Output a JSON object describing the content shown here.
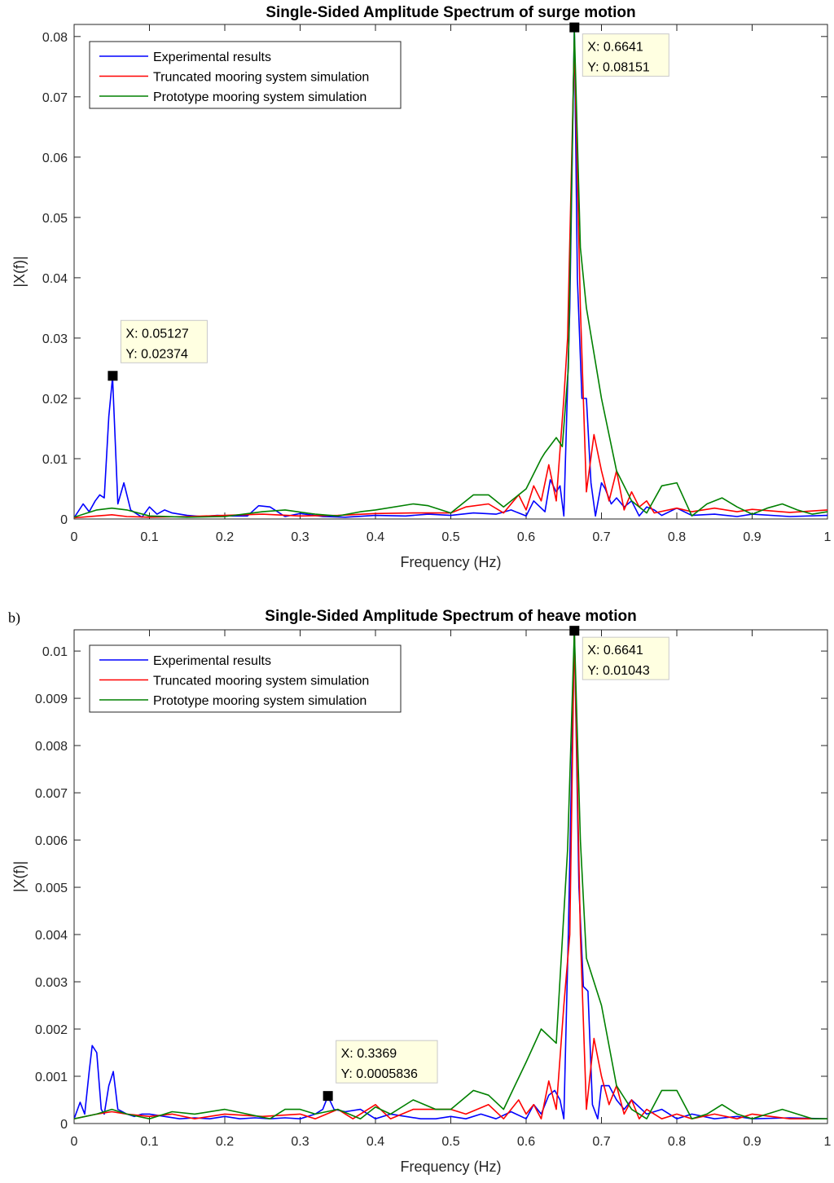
{
  "panel_labels": [
    "",
    "b)"
  ],
  "chart_data": [
    {
      "type": "line",
      "title": "Single-Sided Amplitude Spectrum of surge motion",
      "xlabel": "Frequency (Hz)",
      "ylabel": "|X(f)|",
      "xlim": [
        0,
        1
      ],
      "ylim": [
        0,
        0.082
      ],
      "xticks": [
        0,
        0.1,
        0.2,
        0.3,
        0.4,
        0.5,
        0.6,
        0.7,
        0.8,
        0.9,
        1
      ],
      "xtick_labels": [
        "0",
        "0.1",
        "0.2",
        "0.3",
        "0.4",
        "0.5",
        "0.6",
        "0.7",
        "0.8",
        "0.9",
        "1"
      ],
      "yticks": [
        0,
        0.01,
        0.02,
        0.03,
        0.04,
        0.05,
        0.06,
        0.07,
        0.08
      ],
      "ytick_labels": [
        "0",
        "0.01",
        "0.02",
        "0.03",
        "0.04",
        "0.05",
        "0.06",
        "0.07",
        "0.08"
      ],
      "grid": false,
      "legend_position": "top-left",
      "series": [
        {
          "name": "Experimental results",
          "color": "#0000ff",
          "x": [
            0,
            0.012,
            0.02,
            0.028,
            0.034,
            0.04,
            0.046,
            0.051,
            0.058,
            0.066,
            0.075,
            0.09,
            0.1,
            0.11,
            0.12,
            0.13,
            0.15,
            0.17,
            0.19,
            0.21,
            0.23,
            0.245,
            0.26,
            0.28,
            0.3,
            0.33,
            0.36,
            0.4,
            0.44,
            0.47,
            0.5,
            0.53,
            0.56,
            0.58,
            0.6,
            0.61,
            0.625,
            0.632,
            0.64,
            0.645,
            0.65,
            0.658,
            0.664,
            0.668,
            0.674,
            0.68,
            0.686,
            0.692,
            0.7,
            0.705,
            0.713,
            0.72,
            0.73,
            0.74,
            0.75,
            0.76,
            0.77,
            0.78,
            0.8,
            0.82,
            0.85,
            0.88,
            0.9,
            0.95,
            1
          ],
          "y": [
            0.0002,
            0.0025,
            0.0012,
            0.003,
            0.004,
            0.0035,
            0.017,
            0.0235,
            0.0025,
            0.006,
            0.0015,
            0.0003,
            0.002,
            0.0008,
            0.0015,
            0.001,
            0.0006,
            0.0004,
            0.0006,
            0.0005,
            0.0005,
            0.0022,
            0.002,
            0.0004,
            0.0009,
            0.0004,
            0.0003,
            0.0006,
            0.0005,
            0.0008,
            0.0006,
            0.001,
            0.0008,
            0.0015,
            0.0005,
            0.003,
            0.0012,
            0.0065,
            0.0045,
            0.0055,
            0.0005,
            0.035,
            0.08151,
            0.04,
            0.02,
            0.02,
            0.006,
            0.0005,
            0.006,
            0.005,
            0.0025,
            0.0035,
            0.002,
            0.003,
            0.0005,
            0.002,
            0.0015,
            0.0006,
            0.0018,
            0.0006,
            0.0008,
            0.0004,
            0.0008,
            0.0004,
            0.0006
          ]
        },
        {
          "name": "Truncated mooring system simulation",
          "color": "#ff0000",
          "x": [
            0,
            0.03,
            0.05,
            0.07,
            0.1,
            0.15,
            0.2,
            0.25,
            0.3,
            0.35,
            0.4,
            0.45,
            0.5,
            0.52,
            0.55,
            0.57,
            0.59,
            0.6,
            0.61,
            0.62,
            0.63,
            0.64,
            0.65,
            0.655,
            0.664,
            0.672,
            0.68,
            0.69,
            0.7,
            0.71,
            0.72,
            0.73,
            0.74,
            0.75,
            0.76,
            0.77,
            0.8,
            0.82,
            0.85,
            0.88,
            0.9,
            0.95,
            1
          ],
          "y": [
            0.0002,
            0.0005,
            0.0007,
            0.0004,
            0.0003,
            0.0004,
            0.0006,
            0.0008,
            0.0005,
            0.0006,
            0.0009,
            0.001,
            0.001,
            0.002,
            0.0025,
            0.001,
            0.004,
            0.0015,
            0.0055,
            0.003,
            0.009,
            0.003,
            0.02,
            0.03,
            0.079,
            0.035,
            0.0045,
            0.014,
            0.008,
            0.003,
            0.008,
            0.0015,
            0.0045,
            0.002,
            0.003,
            0.001,
            0.0018,
            0.0012,
            0.0018,
            0.0012,
            0.0016,
            0.0011,
            0.0015
          ]
        },
        {
          "name": "Prototype mooring system simulation",
          "color": "#008000",
          "x": [
            0,
            0.03,
            0.05,
            0.07,
            0.1,
            0.15,
            0.2,
            0.25,
            0.28,
            0.32,
            0.35,
            0.38,
            0.4,
            0.45,
            0.47,
            0.5,
            0.53,
            0.55,
            0.57,
            0.6,
            0.62,
            0.625,
            0.64,
            0.648,
            0.656,
            0.664,
            0.672,
            0.68,
            0.7,
            0.72,
            0.74,
            0.76,
            0.78,
            0.8,
            0.82,
            0.84,
            0.86,
            0.88,
            0.9,
            0.92,
            0.94,
            0.96,
            0.98,
            1
          ],
          "y": [
            0.0003,
            0.0015,
            0.0018,
            0.0015,
            0.0005,
            0.0003,
            0.0004,
            0.0012,
            0.0015,
            0.0008,
            0.0005,
            0.0012,
            0.0015,
            0.0025,
            0.0022,
            0.001,
            0.004,
            0.004,
            0.002,
            0.005,
            0.01,
            0.011,
            0.0135,
            0.012,
            0.025,
            0.081,
            0.045,
            0.035,
            0.02,
            0.008,
            0.003,
            0.001,
            0.0055,
            0.006,
            0.0005,
            0.0025,
            0.0035,
            0.002,
            0.0008,
            0.0018,
            0.0025,
            0.0015,
            0.0008,
            0.0012
          ]
        }
      ],
      "annotations": [
        {
          "x": 0.05127,
          "y": 0.02374,
          "lines": [
            "X: 0.05127",
            "Y: 0.02374"
          ],
          "box_side": "upper-right"
        },
        {
          "x": 0.6641,
          "y": 0.08151,
          "lines": [
            "X: 0.6641",
            "Y: 0.08151"
          ],
          "box_side": "lower-right"
        }
      ]
    },
    {
      "type": "line",
      "title": "Single-Sided Amplitude Spectrum of heave motion",
      "xlabel": "Frequency (Hz)",
      "ylabel": "|X(f)|",
      "xlim": [
        0,
        1
      ],
      "ylim": [
        0,
        0.01045
      ],
      "xticks": [
        0,
        0.1,
        0.2,
        0.3,
        0.4,
        0.5,
        0.6,
        0.7,
        0.8,
        0.9,
        1
      ],
      "xtick_labels": [
        "0",
        "0.1",
        "0.2",
        "0.3",
        "0.4",
        "0.5",
        "0.6",
        "0.7",
        "0.8",
        "0.9",
        "1"
      ],
      "yticks": [
        0,
        0.001,
        0.002,
        0.003,
        0.004,
        0.005,
        0.006,
        0.007,
        0.008,
        0.009,
        0.01
      ],
      "ytick_labels": [
        "0",
        "0.001",
        "0.002",
        "0.003",
        "0.004",
        "0.005",
        "0.006",
        "0.007",
        "0.008",
        "0.009",
        "0.01"
      ],
      "grid": false,
      "legend_position": "top-left",
      "series": [
        {
          "name": "Experimental results",
          "color": "#0000ff",
          "x": [
            0,
            0.008,
            0.014,
            0.02,
            0.024,
            0.03,
            0.036,
            0.04,
            0.046,
            0.052,
            0.058,
            0.07,
            0.08,
            0.09,
            0.1,
            0.12,
            0.14,
            0.16,
            0.18,
            0.2,
            0.22,
            0.24,
            0.26,
            0.28,
            0.3,
            0.32,
            0.33,
            0.3369,
            0.345,
            0.36,
            0.38,
            0.4,
            0.42,
            0.44,
            0.46,
            0.48,
            0.5,
            0.52,
            0.54,
            0.56,
            0.58,
            0.6,
            0.61,
            0.62,
            0.63,
            0.638,
            0.645,
            0.65,
            0.656,
            0.664,
            0.67,
            0.676,
            0.682,
            0.688,
            0.695,
            0.7,
            0.71,
            0.72,
            0.73,
            0.74,
            0.76,
            0.78,
            0.8,
            0.82,
            0.85,
            0.88,
            0.9,
            0.95,
            1
          ],
          "y": [
            0.0001,
            0.00045,
            0.0002,
            0.0011,
            0.00165,
            0.0015,
            0.0003,
            0.0002,
            0.0008,
            0.0011,
            0.0003,
            0.0002,
            0.00015,
            0.0002,
            0.0002,
            0.00015,
            0.0001,
            0.00012,
            0.0001,
            0.00015,
            0.0001,
            0.00012,
            0.0001,
            0.00012,
            0.0001,
            0.0002,
            0.0003,
            0.00058,
            0.0003,
            0.00025,
            0.0003,
            0.0001,
            0.0002,
            0.00015,
            0.0001,
            0.0001,
            0.00015,
            0.0001,
            0.0002,
            0.0001,
            0.00025,
            0.0001,
            0.0004,
            0.0002,
            0.0006,
            0.0007,
            0.0005,
            0.0001,
            0.004,
            0.01043,
            0.005,
            0.0029,
            0.0028,
            0.0004,
            0.0001,
            0.0008,
            0.0008,
            0.0005,
            0.0003,
            0.0005,
            0.0002,
            0.0003,
            0.0001,
            0.0002,
            0.0001,
            0.00015,
            0.0001,
            0.00012,
            0.0001
          ]
        },
        {
          "name": "Truncated mooring system simulation",
          "color": "#ff0000",
          "x": [
            0,
            0.03,
            0.05,
            0.07,
            0.1,
            0.13,
            0.16,
            0.2,
            0.25,
            0.3,
            0.32,
            0.35,
            0.37,
            0.4,
            0.42,
            0.45,
            0.5,
            0.52,
            0.55,
            0.57,
            0.59,
            0.6,
            0.61,
            0.62,
            0.63,
            0.64,
            0.65,
            0.658,
            0.664,
            0.672,
            0.68,
            0.69,
            0.7,
            0.71,
            0.72,
            0.73,
            0.74,
            0.75,
            0.76,
            0.78,
            0.8,
            0.82,
            0.85,
            0.88,
            0.9,
            0.95,
            1
          ],
          "y": [
            0.0001,
            0.0002,
            0.00025,
            0.0002,
            0.00015,
            0.0002,
            0.0001,
            0.0002,
            0.00015,
            0.0002,
            0.0001,
            0.0003,
            0.0001,
            0.0004,
            0.0001,
            0.0003,
            0.0003,
            0.0002,
            0.0004,
            0.0001,
            0.0005,
            0.0002,
            0.0004,
            0.0001,
            0.0009,
            0.0003,
            0.0025,
            0.004,
            0.01043,
            0.004,
            0.0003,
            0.0018,
            0.001,
            0.0004,
            0.0008,
            0.0002,
            0.0005,
            0.0001,
            0.0003,
            0.0001,
            0.0002,
            0.0001,
            0.0002,
            0.0001,
            0.0002,
            0.0001,
            0.0001
          ]
        },
        {
          "name": "Prototype mooring system simulation",
          "color": "#008000",
          "x": [
            0,
            0.03,
            0.05,
            0.07,
            0.1,
            0.13,
            0.16,
            0.2,
            0.23,
            0.26,
            0.28,
            0.3,
            0.32,
            0.35,
            0.38,
            0.4,
            0.42,
            0.45,
            0.48,
            0.5,
            0.53,
            0.55,
            0.57,
            0.6,
            0.62,
            0.64,
            0.655,
            0.664,
            0.672,
            0.68,
            0.7,
            0.72,
            0.74,
            0.76,
            0.78,
            0.8,
            0.82,
            0.84,
            0.86,
            0.88,
            0.9,
            0.92,
            0.94,
            0.96,
            0.98,
            1
          ],
          "y": [
            0.0001,
            0.0002,
            0.0003,
            0.0002,
            0.0001,
            0.00025,
            0.0002,
            0.0003,
            0.0002,
            0.0001,
            0.0003,
            0.0003,
            0.0002,
            0.0003,
            0.0001,
            0.00035,
            0.0002,
            0.0005,
            0.0003,
            0.0003,
            0.0007,
            0.0006,
            0.0003,
            0.0013,
            0.002,
            0.0017,
            0.0058,
            0.01043,
            0.006,
            0.0035,
            0.0025,
            0.0008,
            0.0003,
            0.0001,
            0.0007,
            0.0007,
            0.0001,
            0.0002,
            0.0004,
            0.0002,
            0.0001,
            0.0002,
            0.0003,
            0.0002,
            0.0001,
            0.0001
          ]
        }
      ],
      "annotations": [
        {
          "x": 0.3369,
          "y": 0.0005836,
          "lines": [
            "X: 0.3369",
            "Y: 0.0005836"
          ],
          "box_side": "upper-right"
        },
        {
          "x": 0.6641,
          "y": 0.01043,
          "lines": [
            "X: 0.6641",
            "Y: 0.01043"
          ],
          "box_side": "lower-right"
        }
      ]
    }
  ]
}
